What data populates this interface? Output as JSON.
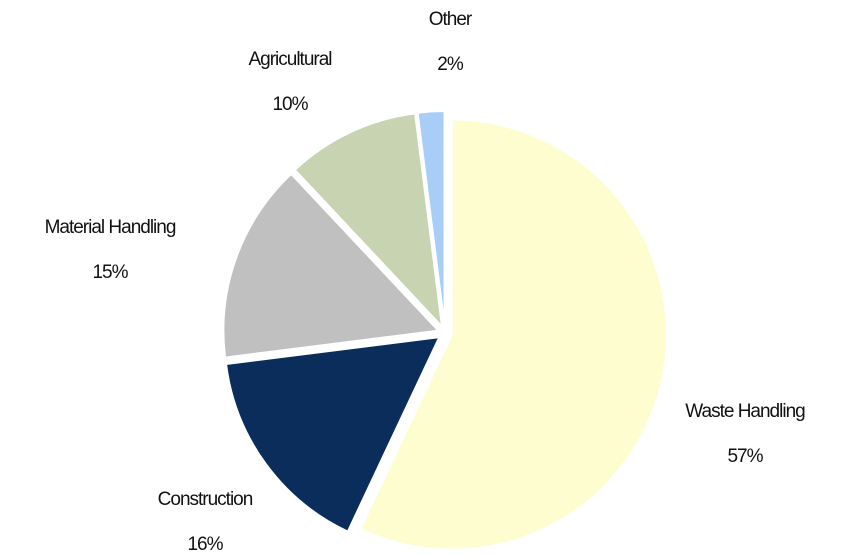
{
  "chart_data": {
    "type": "pie",
    "categories": [
      "Waste Handling",
      "Construction",
      "Material Handling",
      "Agricultural",
      "Other"
    ],
    "values": [
      57,
      16,
      15,
      10,
      2
    ],
    "value_labels": [
      "57%",
      "16%",
      "15%",
      "10%",
      "2%"
    ],
    "colors": [
      "#fdfdd0",
      "#0b2d5b",
      "#c0c0c0",
      "#c7d3b1",
      "#a8cdf7"
    ]
  }
}
